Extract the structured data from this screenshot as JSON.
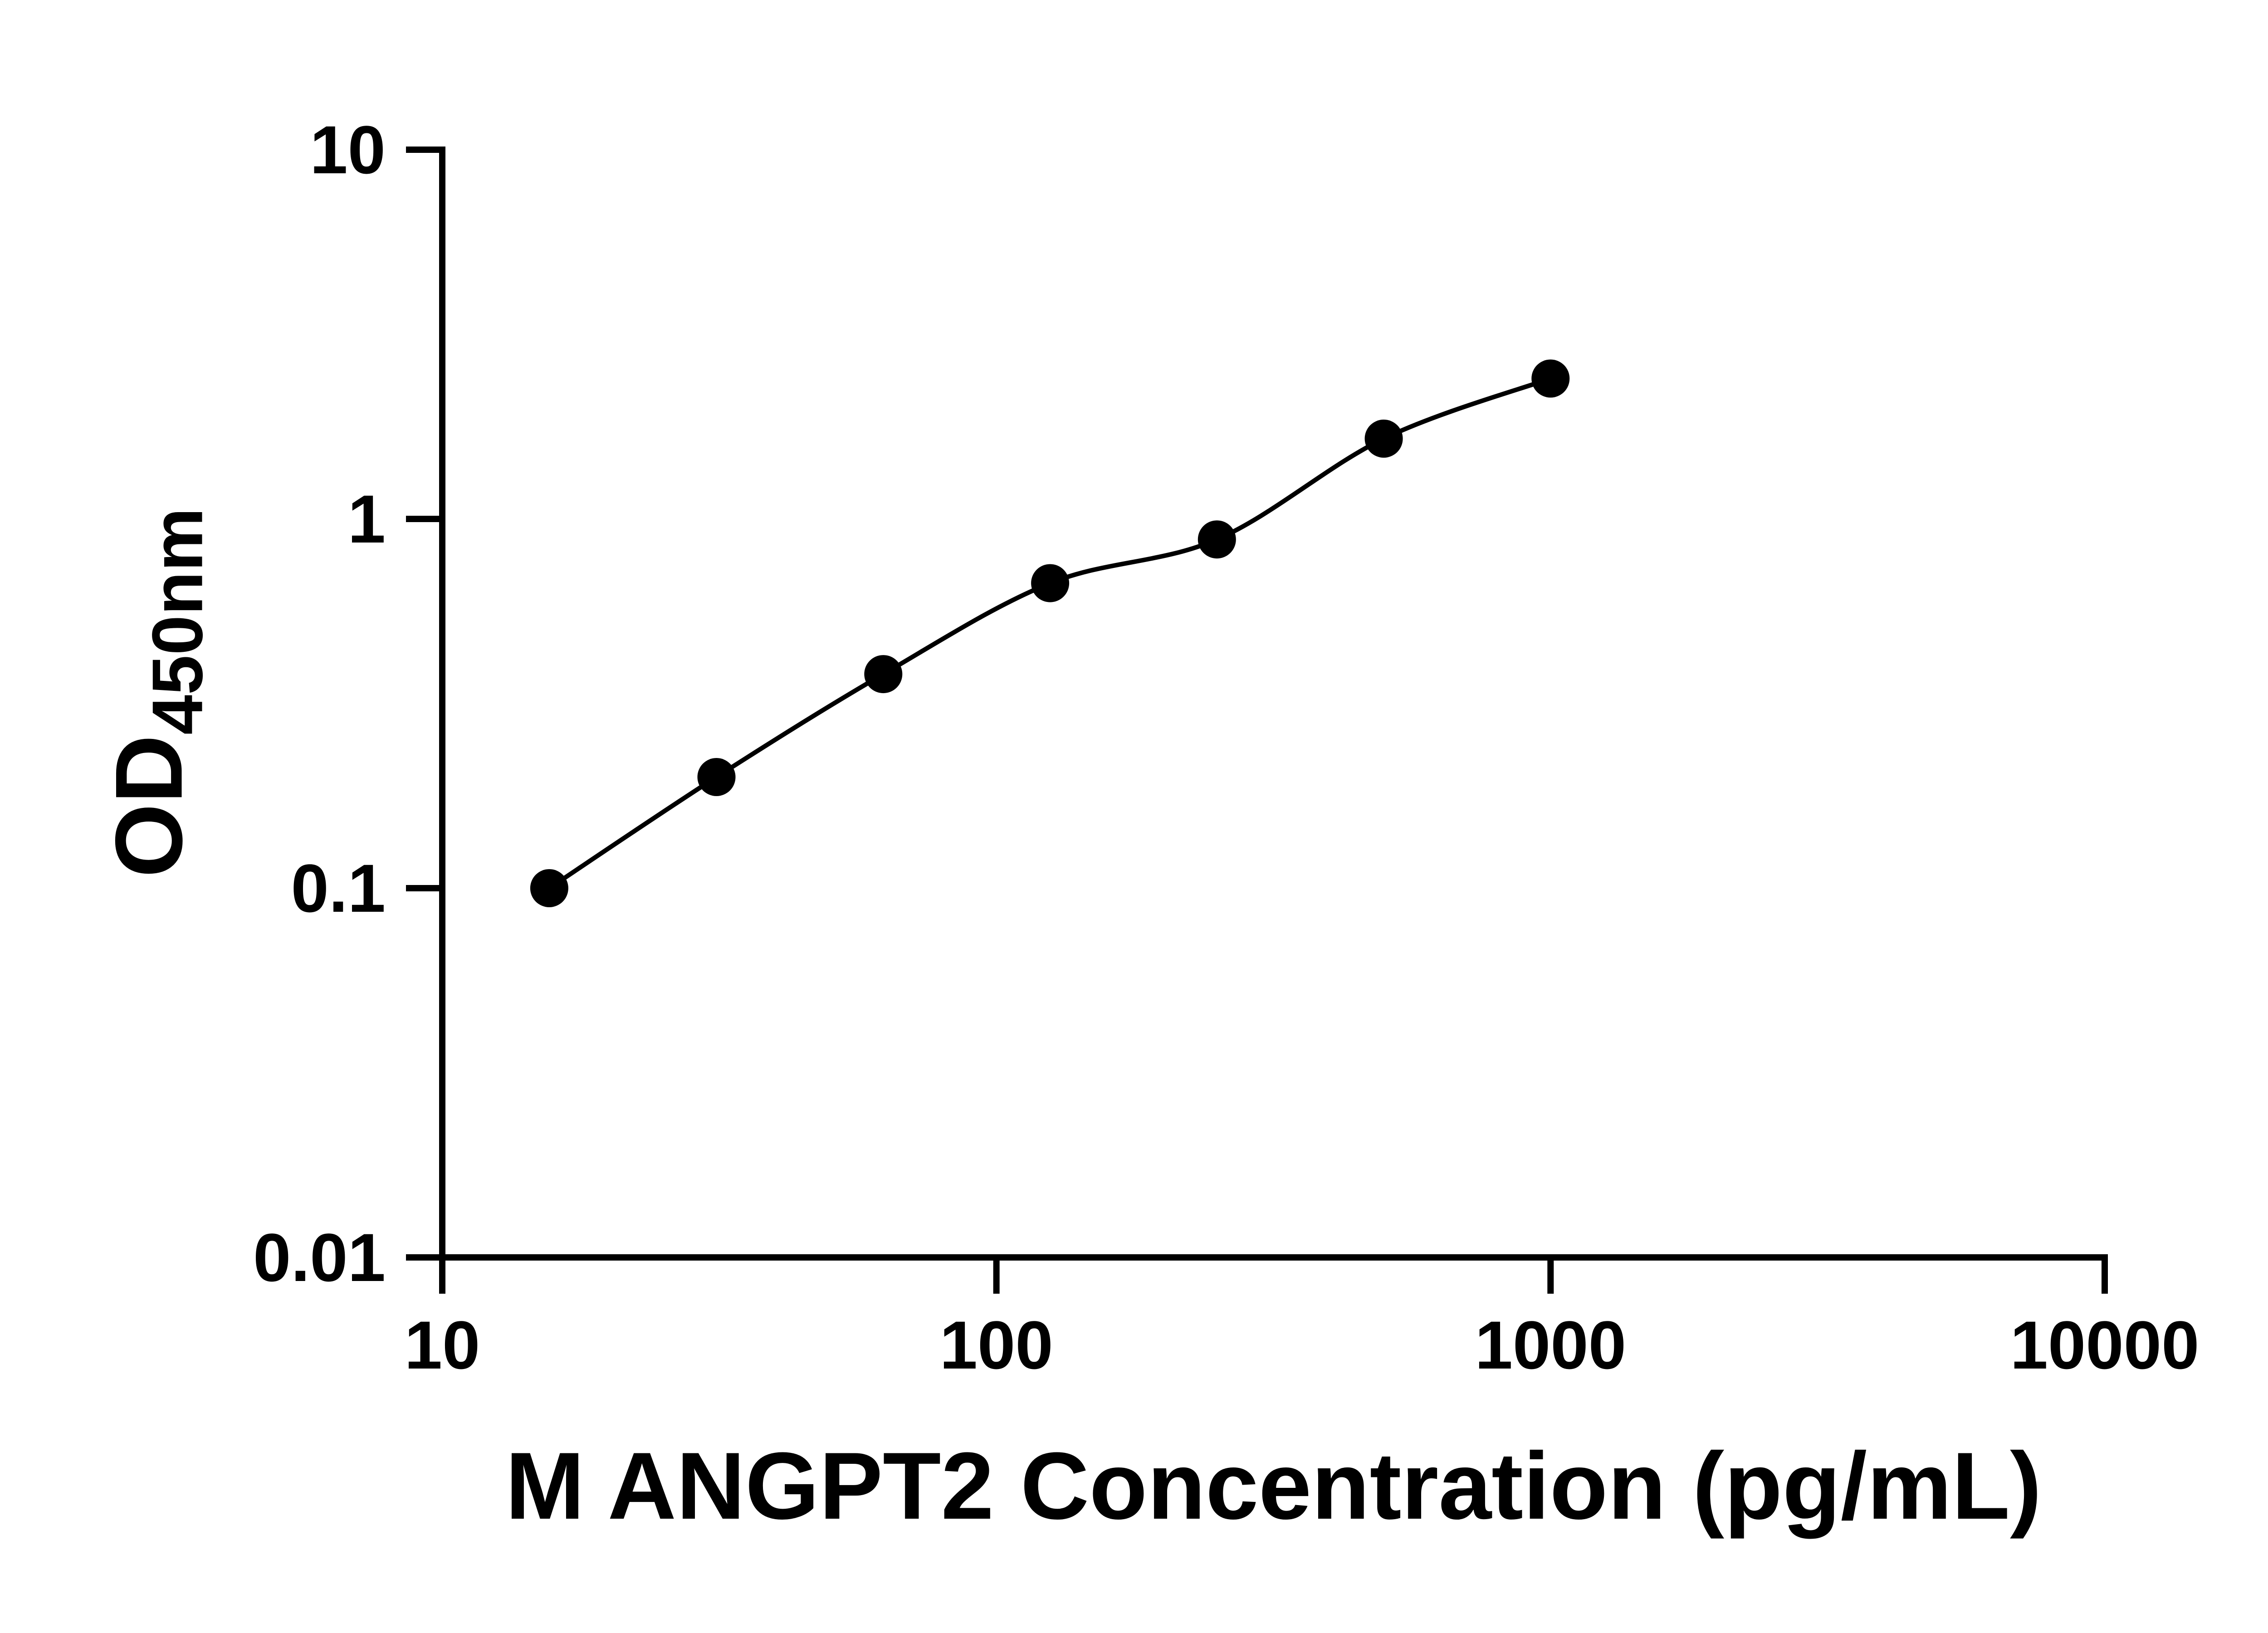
{
  "chart_data": {
    "type": "scatter",
    "x": [
      15.6,
      31.25,
      62.5,
      125,
      250,
      500,
      1000
    ],
    "y": [
      0.1,
      0.2,
      0.38,
      0.67,
      0.88,
      1.65,
      2.4
    ],
    "curve": "smooth fit line through points",
    "xlabel": "M ANGPT2 Concentration (pg/mL)",
    "ylabel_base": "OD",
    "ylabel_subscript": "450nm",
    "x_scale": "log10",
    "y_scale": "log10",
    "xlim": [
      10,
      10000
    ],
    "ylim": [
      0.01,
      10
    ],
    "x_ticks": [
      10,
      100,
      1000,
      10000
    ],
    "x_tick_labels": [
      "10",
      "100",
      "1000",
      "10000"
    ],
    "y_ticks": [
      0.01,
      0.1,
      1,
      10
    ],
    "y_tick_labels": [
      "0.01",
      "0.1",
      "1",
      "10"
    ],
    "grid": false,
    "legend": false,
    "title": "",
    "axis_color": "#000000",
    "marker_color": "#000000",
    "line_color": "#000000",
    "background_color": "#ffffff"
  }
}
